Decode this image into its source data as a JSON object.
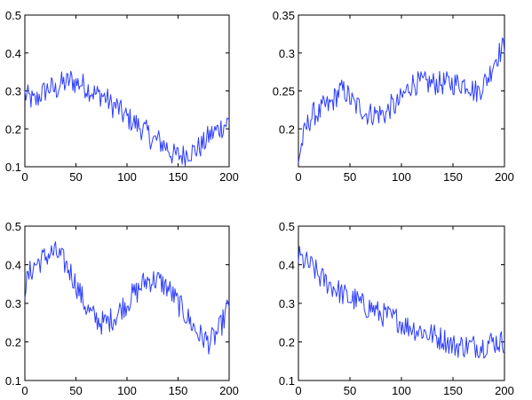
{
  "colors": {
    "line": "#2b3cff",
    "axes": "#000000",
    "background": "#ffffff"
  },
  "chart_data": [
    {
      "type": "line",
      "xlim": [
        0,
        200
      ],
      "ylim": [
        0.1,
        0.5
      ],
      "xticks": [
        0,
        50,
        100,
        150,
        200
      ],
      "yticks": [
        0.1,
        0.2,
        0.3,
        0.4,
        0.5
      ],
      "ytick_labels": [
        "0.1",
        "0.2",
        "0.3",
        "0.4",
        "0.5"
      ],
      "trend": "one broad hump peaking near x≈45 (y≈0.31), trough near x≈150 (y≈0.13), rising to ≈0.22 at x=200",
      "series": [
        {
          "x": [
            0,
            5,
            10,
            15,
            20,
            25,
            30,
            35,
            40,
            45,
            50,
            55,
            60,
            65,
            70,
            75,
            80,
            85,
            90,
            95,
            100,
            105,
            110,
            115,
            120,
            125,
            130,
            135,
            140,
            145,
            150,
            155,
            160,
            165,
            170,
            175,
            180,
            185,
            190,
            195,
            200
          ],
          "y": [
            0.29,
            0.28,
            0.27,
            0.29,
            0.3,
            0.31,
            0.3,
            0.32,
            0.32,
            0.33,
            0.32,
            0.32,
            0.31,
            0.3,
            0.29,
            0.29,
            0.28,
            0.26,
            0.26,
            0.24,
            0.23,
            0.22,
            0.21,
            0.2,
            0.19,
            0.17,
            0.17,
            0.16,
            0.15,
            0.13,
            0.13,
            0.13,
            0.14,
            0.14,
            0.15,
            0.16,
            0.18,
            0.19,
            0.2,
            0.21,
            0.22
          ]
        }
      ]
    },
    {
      "type": "line",
      "xlim": [
        0,
        200
      ],
      "ylim": [
        0.15,
        0.35
      ],
      "xticks": [
        0,
        50,
        100,
        150,
        200
      ],
      "yticks": [
        0.2,
        0.25,
        0.3,
        0.35
      ],
      "ytick_labels": [
        "0.2",
        "0.25",
        "0.3",
        "0.35"
      ],
      "trend": "starts ≈0.17, rises to ≈0.23 by x≈15, wavy plateau ≈0.22–0.25, climbs from ≈x=100 to ≈0.26 and ends ≈0.31 at x=200",
      "series": [
        {
          "x": [
            0,
            5,
            10,
            15,
            20,
            25,
            30,
            35,
            40,
            45,
            50,
            55,
            60,
            65,
            70,
            75,
            80,
            85,
            90,
            95,
            100,
            105,
            110,
            115,
            120,
            125,
            130,
            135,
            140,
            145,
            150,
            155,
            160,
            165,
            170,
            175,
            180,
            185,
            190,
            195,
            200
          ],
          "y": [
            0.16,
            0.19,
            0.21,
            0.22,
            0.22,
            0.23,
            0.23,
            0.24,
            0.25,
            0.25,
            0.24,
            0.23,
            0.23,
            0.22,
            0.22,
            0.22,
            0.22,
            0.22,
            0.23,
            0.23,
            0.24,
            0.25,
            0.26,
            0.26,
            0.26,
            0.26,
            0.26,
            0.26,
            0.26,
            0.26,
            0.26,
            0.26,
            0.26,
            0.26,
            0.25,
            0.25,
            0.26,
            0.27,
            0.29,
            0.3,
            0.31
          ]
        }
      ]
    },
    {
      "type": "line",
      "xlim": [
        0,
        200
      ],
      "ylim": [
        0.1,
        0.5
      ],
      "xticks": [
        0,
        50,
        100,
        150,
        200
      ],
      "yticks": [
        0.1,
        0.2,
        0.3,
        0.4,
        0.5
      ],
      "ytick_labels": [
        "0.1",
        "0.2",
        "0.3",
        "0.4",
        "0.5"
      ],
      "trend": "damped oscillation: peak ≈0.43 near x≈25, trough ≈0.25 near x≈75, peak ≈0.36 near x≈125, trough ≈0.20 near x≈180, ends ≈0.30",
      "series": [
        {
          "x": [
            0,
            5,
            10,
            15,
            20,
            25,
            30,
            35,
            40,
            45,
            50,
            55,
            60,
            65,
            70,
            75,
            80,
            85,
            90,
            95,
            100,
            105,
            110,
            115,
            120,
            125,
            130,
            135,
            140,
            145,
            150,
            155,
            160,
            165,
            170,
            175,
            180,
            185,
            190,
            195,
            200
          ],
          "y": [
            0.34,
            0.38,
            0.4,
            0.41,
            0.42,
            0.43,
            0.43,
            0.42,
            0.4,
            0.38,
            0.35,
            0.32,
            0.29,
            0.27,
            0.26,
            0.25,
            0.25,
            0.26,
            0.27,
            0.29,
            0.3,
            0.32,
            0.33,
            0.35,
            0.36,
            0.36,
            0.36,
            0.35,
            0.34,
            0.32,
            0.3,
            0.28,
            0.26,
            0.24,
            0.22,
            0.21,
            0.2,
            0.21,
            0.23,
            0.26,
            0.3
          ]
        }
      ]
    },
    {
      "type": "line",
      "xlim": [
        0,
        200
      ],
      "ylim": [
        0.1,
        0.5
      ],
      "xticks": [
        0,
        50,
        100,
        150,
        200
      ],
      "yticks": [
        0.1,
        0.2,
        0.3,
        0.4,
        0.5
      ],
      "ytick_labels": [
        "0.1",
        "0.2",
        "0.3",
        "0.4",
        "0.5"
      ],
      "trend": "steady decline from ≈0.42 at x=0 to ≈0.19 near x≈150, then flat ≈0.19–0.20",
      "series": [
        {
          "x": [
            0,
            5,
            10,
            15,
            20,
            25,
            30,
            35,
            40,
            45,
            50,
            55,
            60,
            65,
            70,
            75,
            80,
            85,
            90,
            95,
            100,
            105,
            110,
            115,
            120,
            125,
            130,
            135,
            140,
            145,
            150,
            155,
            160,
            165,
            170,
            175,
            180,
            185,
            190,
            195,
            200
          ],
          "y": [
            0.42,
            0.41,
            0.4,
            0.39,
            0.37,
            0.36,
            0.35,
            0.34,
            0.33,
            0.32,
            0.31,
            0.31,
            0.3,
            0.29,
            0.29,
            0.28,
            0.27,
            0.27,
            0.26,
            0.26,
            0.25,
            0.24,
            0.24,
            0.23,
            0.23,
            0.22,
            0.22,
            0.21,
            0.21,
            0.2,
            0.19,
            0.19,
            0.19,
            0.19,
            0.19,
            0.19,
            0.19,
            0.2,
            0.2,
            0.2,
            0.2
          ]
        }
      ]
    }
  ]
}
